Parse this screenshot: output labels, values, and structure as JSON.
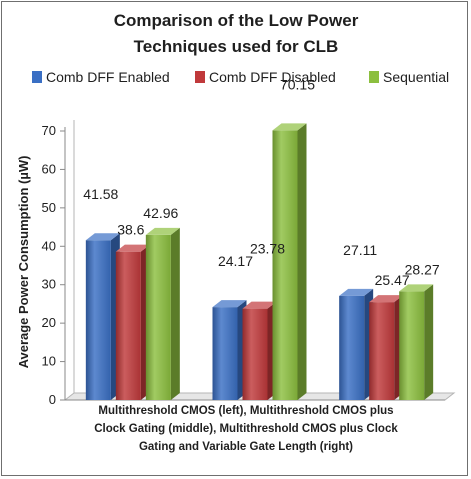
{
  "chart_data": {
    "type": "bar",
    "title": [
      "Comparison of the Low Power",
      "Techniques used for CLB"
    ],
    "categories": [
      "",
      "",
      ""
    ],
    "series": [
      {
        "name": "Comb DFF Enabled",
        "color": "#3a6fc4",
        "values": [
          41.58,
          24.17,
          27.11
        ]
      },
      {
        "name": "Comb DFF Disabled",
        "color": "#c0393b",
        "values": [
          38.6,
          23.78,
          25.47
        ]
      },
      {
        "name": "Sequential",
        "color": "#8cbf3f",
        "values": [
          42.96,
          70.15,
          28.27
        ]
      }
    ],
    "data_labels": [
      [
        "41.58",
        "24.17",
        "27.11"
      ],
      [
        "38.6",
        "23.78",
        "25.47"
      ],
      [
        "42.96",
        "70.15",
        "28.27"
      ]
    ],
    "ylabel": "Average Power Consumption (µW)",
    "xlabel": [
      "Multithreshold CMOS (left), Multithreshold CMOS plus",
      "Clock Gating (middle), Multithreshold CMOS plus Clock",
      "Gating and Variable Gate Length (right)"
    ],
    "ylim": [
      0,
      70
    ],
    "yticks": [
      "0",
      "10",
      "20",
      "30",
      "40",
      "50",
      "60",
      "70"
    ],
    "legend_position": "top",
    "grid": false,
    "style": "3d-column"
  }
}
